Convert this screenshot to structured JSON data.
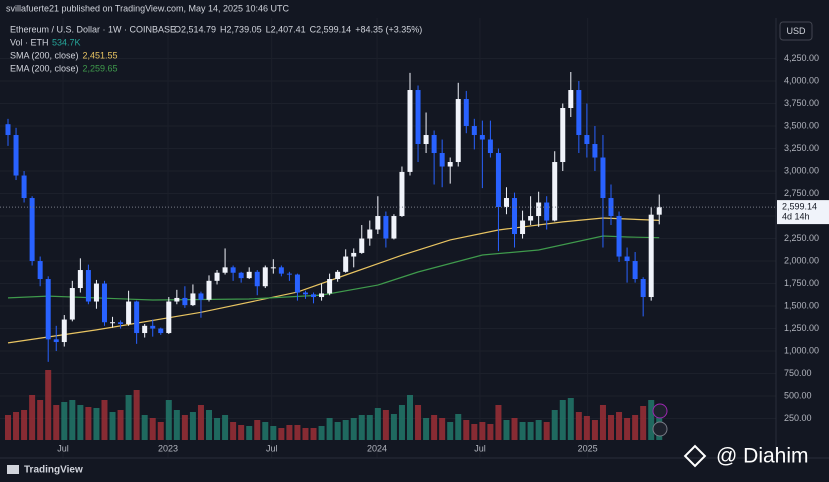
{
  "header": {
    "published": "svillafuerte21 published on TradingView.com, May 14, 2025 10:46 UTC",
    "footer": "TradingView",
    "watermark": "@ Diahim"
  },
  "chart_data": {
    "type": "candlestick",
    "title": "Ethereum / U.S. Dollar · 1W · COINBASE",
    "ohlc": [
      "O2,514.79",
      "H2,739.05",
      "L2,407.41",
      "C2,599.14",
      "+84.35 (+3.35%)"
    ],
    "volume_label": "Vol · ETH",
    "volume_value": "534.7K",
    "currency": "USD",
    "last_label": {
      "price": "2,599.14",
      "countdown": "4d 14h"
    },
    "up_color": "#f0f3fa",
    "down_color": "#2962ff",
    "vol_up_color": "#22786a",
    "vol_down_color": "#9c2f36",
    "candles": [
      [
        3520,
        3580,
        3280,
        3400
      ],
      [
        3400,
        3480,
        2900,
        2950
      ],
      [
        2950,
        3000,
        2650,
        2700
      ],
      [
        2700,
        2720,
        1950,
        2000
      ],
      [
        2000,
        2050,
        1720,
        1800
      ],
      [
        1800,
        1830,
        880,
        1130
      ],
      [
        1130,
        1280,
        1000,
        1100
      ],
      [
        1100,
        1400,
        1050,
        1350
      ],
      [
        1350,
        1780,
        1330,
        1700
      ],
      [
        1700,
        2030,
        1650,
        1900
      ],
      [
        1900,
        1960,
        1520,
        1550
      ],
      [
        1550,
        1790,
        1470,
        1750
      ],
      [
        1750,
        1780,
        1280,
        1320
      ],
      [
        1320,
        1380,
        1260,
        1320
      ],
      [
        1320,
        1340,
        1250,
        1300
      ],
      [
        1300,
        1670,
        1280,
        1550
      ],
      [
        1550,
        1560,
        1080,
        1200
      ],
      [
        1200,
        1300,
        1150,
        1280
      ],
      [
        1280,
        1350,
        1160,
        1250
      ],
      [
        1250,
        1260,
        1180,
        1200
      ],
      [
        1200,
        1600,
        1190,
        1550
      ],
      [
        1550,
        1680,
        1520,
        1590
      ],
      [
        1590,
        1720,
        1480,
        1510
      ],
      [
        1510,
        1740,
        1500,
        1640
      ],
      [
        1640,
        1660,
        1370,
        1570
      ],
      [
        1570,
        1840,
        1550,
        1780
      ],
      [
        1780,
        1900,
        1740,
        1870
      ],
      [
        1870,
        2140,
        1850,
        1930
      ],
      [
        1930,
        1950,
        1780,
        1870
      ],
      [
        1870,
        1880,
        1760,
        1810
      ],
      [
        1810,
        1930,
        1800,
        1880
      ],
      [
        1880,
        1900,
        1620,
        1720
      ],
      [
        1720,
        1950,
        1700,
        1930
      ],
      [
        1930,
        2020,
        1860,
        1930
      ],
      [
        1930,
        1950,
        1830,
        1860
      ],
      [
        1860,
        1880,
        1780,
        1850
      ],
      [
        1850,
        1860,
        1560,
        1650
      ],
      [
        1650,
        1670,
        1580,
        1630
      ],
      [
        1630,
        1650,
        1530,
        1600
      ],
      [
        1600,
        1750,
        1560,
        1640
      ],
      [
        1640,
        1860,
        1620,
        1800
      ],
      [
        1800,
        1900,
        1770,
        1880
      ],
      [
        1880,
        2130,
        1870,
        2050
      ],
      [
        2050,
        2140,
        1930,
        2090
      ],
      [
        2090,
        2400,
        2080,
        2250
      ],
      [
        2250,
        2450,
        2170,
        2350
      ],
      [
        2350,
        2720,
        2300,
        2500
      ],
      [
        2500,
        2550,
        2150,
        2250
      ],
      [
        2250,
        2520,
        2240,
        2500
      ],
      [
        2500,
        3050,
        2490,
        2990
      ],
      [
        2990,
        4090,
        2950,
        3900
      ],
      [
        3900,
        3950,
        3100,
        3300
      ],
      [
        3300,
        3650,
        3200,
        3400
      ],
      [
        3400,
        3450,
        2850,
        3200
      ],
      [
        3200,
        3350,
        2820,
        3050
      ],
      [
        3050,
        3150,
        2860,
        3100
      ],
      [
        3100,
        3980,
        3050,
        3800
      ],
      [
        3800,
        3890,
        3420,
        3500
      ],
      [
        3500,
        3580,
        3240,
        3400
      ],
      [
        3400,
        3560,
        2810,
        3350
      ],
      [
        3350,
        3560,
        3150,
        3200
      ],
      [
        3200,
        3250,
        2110,
        2600
      ],
      [
        2600,
        2820,
        2520,
        2700
      ],
      [
        2700,
        2760,
        2150,
        2300
      ],
      [
        2300,
        2560,
        2250,
        2450
      ],
      [
        2450,
        2720,
        2400,
        2500
      ],
      [
        2500,
        2770,
        2380,
        2650
      ],
      [
        2650,
        2720,
        2350,
        2450
      ],
      [
        2450,
        3220,
        2440,
        3100
      ],
      [
        3100,
        3750,
        3000,
        3700
      ],
      [
        3700,
        4100,
        3600,
        3900
      ],
      [
        3900,
        4000,
        3200,
        3400
      ],
      [
        3400,
        3750,
        3150,
        3300
      ],
      [
        3300,
        3500,
        3000,
        3150
      ],
      [
        3150,
        3400,
        2150,
        2700
      ],
      [
        2700,
        2850,
        2400,
        2500
      ],
      [
        2500,
        2550,
        1990,
        2050
      ],
      [
        2050,
        2150,
        1760,
        2000
      ],
      [
        2000,
        2100,
        1760,
        1800
      ],
      [
        1800,
        1820,
        1385,
        1600
      ],
      [
        1600,
        2600,
        1560,
        2514.79
      ],
      [
        2514.79,
        2739.05,
        2407.41,
        2599.14
      ]
    ],
    "volume": [
      25,
      28,
      30,
      45,
      40,
      70,
      35,
      38,
      40,
      35,
      33,
      32,
      40,
      28,
      30,
      45,
      50,
      25,
      22,
      18,
      40,
      30,
      25,
      28,
      35,
      30,
      22,
      25,
      18,
      15,
      14,
      20,
      18,
      14,
      12,
      15,
      15,
      12,
      12,
      14,
      22,
      18,
      20,
      22,
      25,
      25,
      32,
      30,
      26,
      35,
      45,
      35,
      22,
      25,
      22,
      18,
      26,
      20,
      16,
      18,
      16,
      35,
      20,
      22,
      18,
      18,
      20,
      18,
      30,
      40,
      42,
      28,
      24,
      20,
      35,
      25,
      28,
      22,
      25,
      34,
      40,
      30
    ],
    "vlim": [
      0,
      100
    ],
    "series": [
      {
        "name": "SMA (200, close)",
        "value_label": "2,451.55",
        "color": "#e8c462",
        "x": [
          0,
          11,
          24,
          36,
          42,
          49,
          55,
          61,
          69,
          74,
          81
        ],
        "values": [
          1090,
          1235,
          1430,
          1655,
          1845,
          2065,
          2235,
          2345,
          2435,
          2478,
          2451.55
        ]
      },
      {
        "name": "EMA (200, close)",
        "value_label": "2,259.65",
        "color": "#3f9a4c",
        "x": [
          0,
          5,
          18,
          30,
          39,
          46,
          51,
          59,
          66,
          74,
          77,
          81
        ],
        "values": [
          1590,
          1610,
          1567,
          1578,
          1622,
          1733,
          1878,
          2067,
          2122,
          2278,
          2267,
          2259.65
        ]
      }
    ],
    "ylim": [
      -155,
      4900
    ],
    "yticks": [
      {
        "value": 250,
        "label": "250.00"
      },
      {
        "value": 500,
        "label": "500.00"
      },
      {
        "value": 750,
        "label": "750.00"
      },
      {
        "value": 1000,
        "label": "1,000.00"
      },
      {
        "value": 1250,
        "label": "1,250.00"
      },
      {
        "value": 1500,
        "label": "1,500.00"
      },
      {
        "value": 1750,
        "label": "1,750.00"
      },
      {
        "value": 2000,
        "label": "2,000.00"
      },
      {
        "value": 2250,
        "label": "2,250.00"
      },
      {
        "value": 2500,
        "label": "2,500.00"
      },
      {
        "value": 2750,
        "label": "2,750.00"
      },
      {
        "value": 3000,
        "label": "3,000.00"
      },
      {
        "value": 3250,
        "label": "3,250.00"
      },
      {
        "value": 3500,
        "label": "3,500.00"
      },
      {
        "value": 3750,
        "label": "3,750.00"
      },
      {
        "value": 4000,
        "label": "4,000.00"
      },
      {
        "value": 4250,
        "label": "4,250.00"
      }
    ],
    "xticks": [
      {
        "value": 6.84,
        "label": "Jul"
      },
      {
        "value": 19.9,
        "label": "2023"
      },
      {
        "value": 32.8,
        "label": "Jul"
      },
      {
        "value": 45.9,
        "label": "2024"
      },
      {
        "value": 58.7,
        "label": "Jul"
      },
      {
        "value": 72.1,
        "label": "2025"
      }
    ],
    "grid": true
  }
}
